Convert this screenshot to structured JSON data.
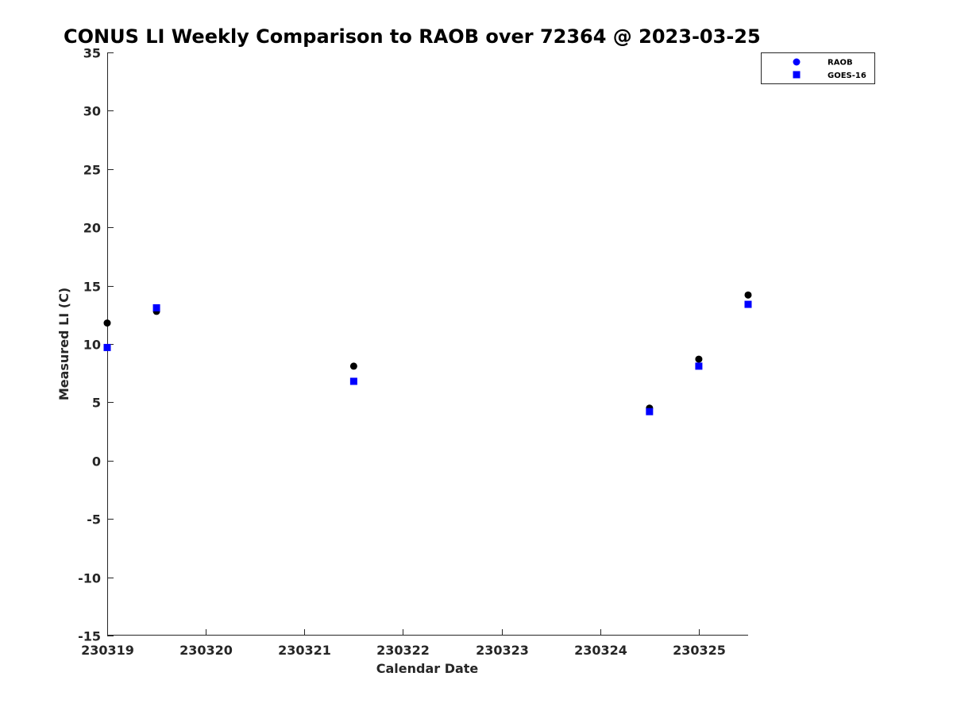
{
  "colors": {
    "raob": "#000000",
    "goes": "#0000ff",
    "raob_legend": "#0000ff",
    "axis": "#262626",
    "background": "#ffffff"
  },
  "chart_data": {
    "type": "scatter",
    "title": "CONUS LI Weekly Comparison to RAOB over 72364 @ 2023-03-25",
    "xlabel": "Calendar Date",
    "ylabel": "Measured LI (C)",
    "xlim": [
      0,
      6.5
    ],
    "ylim": [
      -15,
      35
    ],
    "x_ticks": [
      0,
      1,
      2,
      3,
      4,
      5,
      6
    ],
    "x_tick_labels": [
      "230319",
      "230320",
      "230321",
      "230322",
      "230323",
      "230324",
      "230325"
    ],
    "y_ticks": [
      -15,
      -10,
      -5,
      0,
      5,
      10,
      15,
      20,
      25,
      30,
      35
    ],
    "y_tick_labels": [
      "-15",
      "-10",
      "-5",
      "0",
      "5",
      "10",
      "15",
      "20",
      "25",
      "30",
      "35"
    ],
    "x_unit_note": "x values are days after 230319 as shown on the date axis ticks",
    "grid": false,
    "legend_position": "top-right",
    "series": [
      {
        "name": "RAOB",
        "marker": "circle",
        "x": [
          0,
          0.5,
          2.5,
          5.5,
          6,
          6.5
        ],
        "y": [
          11.8,
          12.8,
          8.1,
          4.5,
          8.7,
          14.2
        ]
      },
      {
        "name": "GOES-16",
        "marker": "square",
        "x": [
          0,
          0.5,
          2.5,
          5.5,
          6,
          6.5
        ],
        "y": [
          9.7,
          13.1,
          6.8,
          4.2,
          8.1,
          13.4
        ]
      }
    ]
  }
}
